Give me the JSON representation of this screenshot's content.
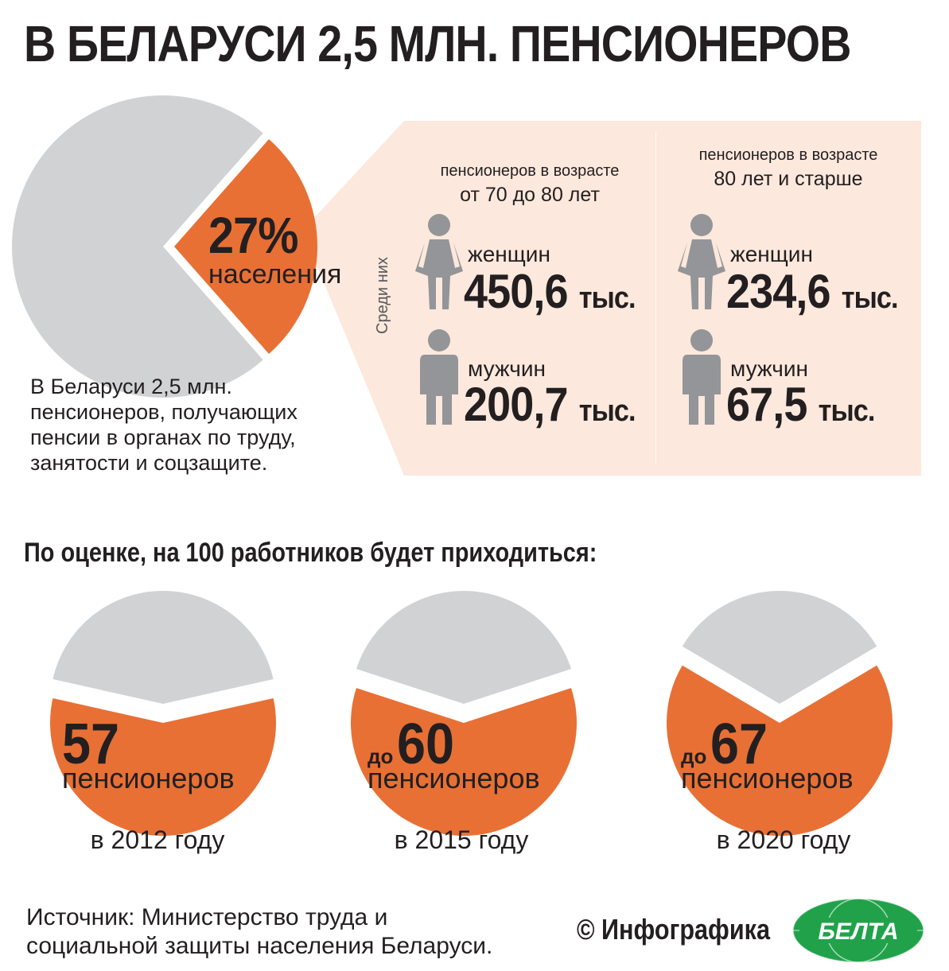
{
  "title": "В БЕЛАРУСИ 2,5 МЛН. ПЕНСИОНЕРОВ",
  "main_pie": {
    "percent": "27%",
    "label": "населения",
    "value_pct": 27
  },
  "description": [
    "В Беларуси 2,5 млн.",
    "пенсионеров, получающих",
    "пенсии в органах по труду,",
    "занятости и соцзащите."
  ],
  "among_label": "Среди них",
  "groups": [
    {
      "heading": [
        "пенсионеров в возрасте",
        "от 70 до 80 лет"
      ],
      "women_label": "женщин",
      "women_value": "450,6",
      "women_unit": "тыс.",
      "men_label": "мужчин",
      "men_value": "200,7",
      "men_unit": "тыс."
    },
    {
      "heading": [
        "пенсионеров в возрасте",
        "80 лет и старше"
      ],
      "women_label": "женщин",
      "women_value": "234,6",
      "women_unit": "тыс.",
      "men_label": "мужчин",
      "men_value": "67,5",
      "men_unit": "тыс."
    }
  ],
  "estimate_heading": "По оценке, на 100 работников будет приходиться:",
  "source": [
    "Источник: Министерство труда и",
    "социальной защиты населения Беларуси."
  ],
  "credit": "© Инфографика",
  "logo_text": "БЕЛТА",
  "colors": {
    "orange": "#e87035",
    "gray": "#d1d2d4",
    "panel": "#fce8dc",
    "figure": "#939598"
  },
  "chart_data": [
    {
      "type": "pie",
      "title": "В БЕЛАРУСИ 2,5 МЛН. ПЕНСИОНЕРОВ",
      "series": [
        {
          "values": [
            27,
            73
          ]
        }
      ],
      "categories": [
        "населения",
        ""
      ]
    },
    {
      "type": "pie",
      "title": "По оценке, на 100 работников будет приходиться:",
      "categories": [
        "в 2012 году",
        "в 2015 году",
        "в 2020 году"
      ],
      "series": [
        {
          "values": [
            57,
            60,
            67
          ]
        }
      ],
      "labels": [
        {
          "prefix": "",
          "value": "57",
          "unit": "пенсионеров",
          "year": "в 2012 году"
        },
        {
          "prefix": "до",
          "value": "60",
          "unit": "пенсионеров",
          "year": "в 2015 году"
        },
        {
          "prefix": "до",
          "value": "67",
          "unit": "пенсионеров",
          "year": "в 2020 году"
        }
      ]
    }
  ]
}
